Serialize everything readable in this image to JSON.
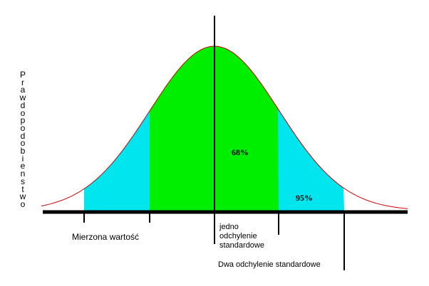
{
  "colors": {
    "inner_region": "#00ee00",
    "outer_region": "#00e5ee",
    "curve": "#cc0000",
    "axis": "#000000",
    "background": "#ffffff"
  },
  "labels": {
    "y_axis": "Prawdopodobienstwo",
    "measured_value": "Mierzona wartość",
    "one_sd_line1": "jedno",
    "one_sd_line2": "odchylenie",
    "one_sd_line3": "standardowe",
    "two_sd": "Dwa odchylenie standardowe",
    "inner_percent": "68%",
    "outer_percent": "95%"
  }
}
